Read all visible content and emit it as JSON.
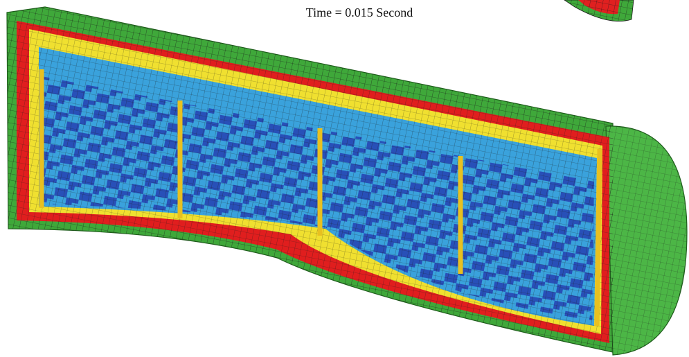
{
  "title": "Time = 0.015 Second"
}
